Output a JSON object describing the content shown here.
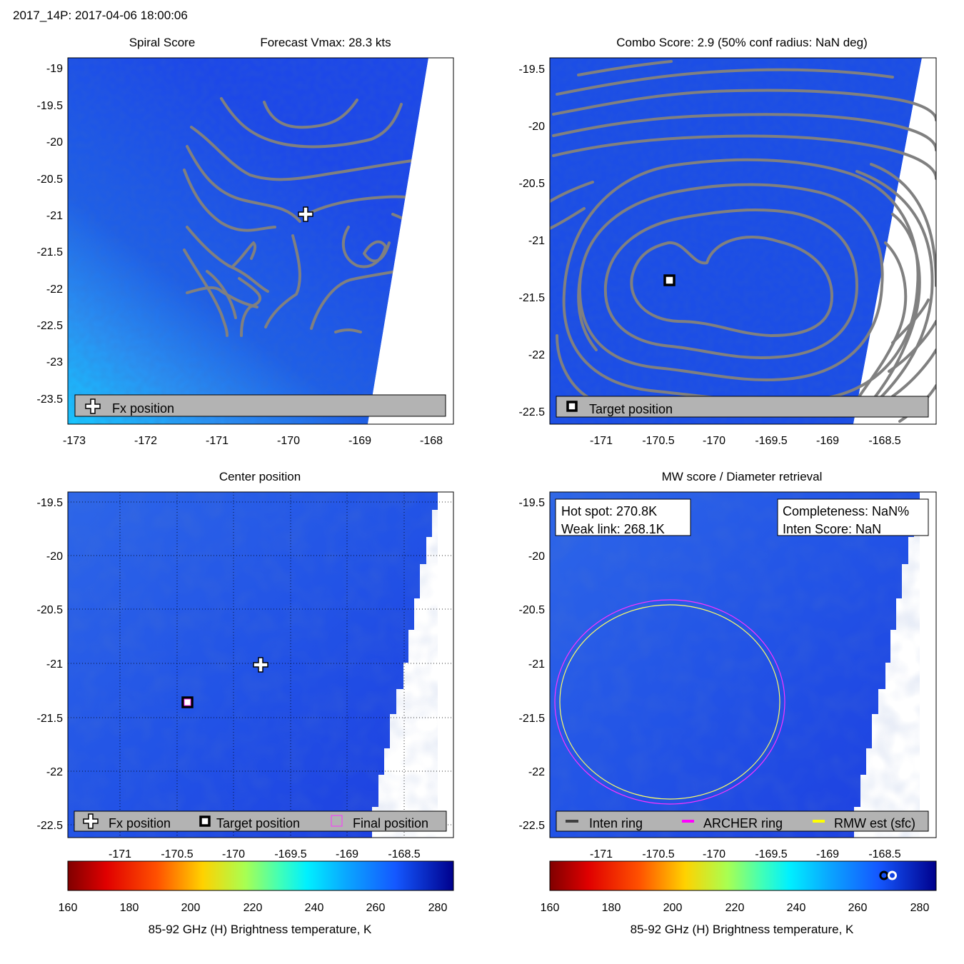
{
  "figure_title": "2017_14P: 2017-04-06 18:00:06",
  "colors": {
    "contour": "#808080",
    "field_blue": "#1c4ee6",
    "legend_bg": "#b3b3b3",
    "archer_ring": "#ff00ff",
    "rmw_ring": "#ffff00",
    "inten_ring": "#404040"
  },
  "panels": {
    "spiral": {
      "title_left": "Spiral Score",
      "title_right": "Forecast Vmax: 28.3 kts",
      "legend": {
        "fx_label": "Fx position"
      }
    },
    "combo": {
      "title": "Combo Score: 2.9  (50% conf radius: NaN deg)",
      "legend": {
        "target_label": "Target position"
      }
    },
    "center": {
      "title": "Center position",
      "legend": {
        "fx_label": "Fx position",
        "target_label": "Target position",
        "final_label": "Final position"
      }
    },
    "mw": {
      "title": "MW score / Diameter retrieval",
      "hot_spot": "Hot spot: 270.8K",
      "weak_link": "Weak link: 268.1K",
      "completeness": "Completeness: NaN%",
      "inten_score": "Inten Score: NaN",
      "legend": {
        "inten_label": "Inten ring",
        "archer_label": "ARCHER ring",
        "rmw_label": "RMW est (sfc)"
      }
    }
  },
  "colorbar": {
    "ticks": [
      "160",
      "180",
      "200",
      "220",
      "240",
      "260",
      "280"
    ],
    "range": [
      160,
      285
    ],
    "label": "85-92 GHz (H) Brightness temperature, K",
    "hot_spot_K": 270.8,
    "weak_link_K": 268.1
  },
  "chart_data": [
    {
      "type": "heatmap",
      "id": "spiral",
      "title": "Spiral Score  Forecast Vmax: 28.3 kts",
      "xlim": [
        -173.1,
        -167.7
      ],
      "ylim": [
        -23.85,
        -18.85
      ],
      "xticks": [
        "-173",
        "-172",
        "-171",
        "-170",
        "-169",
        "-168"
      ],
      "yticks": [
        "-19",
        "-19.5",
        "-20",
        "-20.5",
        "-21",
        "-21.5",
        "-22",
        "-22.5",
        "-23",
        "-23.5"
      ],
      "fx_position": {
        "lon": -169.73,
        "lat": -21.0
      },
      "swath_edge": [
        [
          -168.05,
          -18.85
        ],
        [
          -169.08,
          -23.85
        ]
      ],
      "legend": [
        "Fx position"
      ]
    },
    {
      "type": "heatmap",
      "id": "combo",
      "title": "Combo Score: 2.9  (50% conf radius: NaN deg)",
      "xlim": [
        -171.4,
        -168.0
      ],
      "ylim": [
        -22.61,
        -19.43
      ],
      "xticks": [
        "-171",
        "-170.5",
        "-170",
        "-169.5",
        "-169",
        "-168.5"
      ],
      "yticks": [
        "-19.5",
        "-20",
        "-20.5",
        "-21",
        "-21.5",
        "-22",
        "-22.5"
      ],
      "target_position": {
        "lon": -170.38,
        "lat": -21.36
      },
      "swath_edge": [
        [
          -168.1,
          -19.43
        ],
        [
          -168.75,
          -22.61
        ]
      ],
      "legend": [
        "Target position"
      ]
    },
    {
      "type": "heatmap",
      "id": "center",
      "title": "Center position",
      "xlim": [
        -171.4,
        -168.0
      ],
      "ylim": [
        -22.61,
        -19.43
      ],
      "xticks": [
        "-171",
        "-170.5",
        "-170",
        "-169.5",
        "-169",
        "-168.5"
      ],
      "yticks": [
        "-19.5",
        "-20",
        "-20.5",
        "-21",
        "-21.5",
        "-22",
        "-22.5"
      ],
      "grid": true,
      "fx_position": {
        "lon": -169.73,
        "lat": -21.01
      },
      "target_position": {
        "lon": -170.37,
        "lat": -21.36
      },
      "final_position": {
        "lon": -170.37,
        "lat": -21.36
      },
      "legend": [
        "Fx position",
        "Target position",
        "Final position"
      ]
    },
    {
      "type": "heatmap",
      "id": "mw",
      "title": "MW score / Diameter retrieval",
      "xlim": [
        -171.4,
        -168.0
      ],
      "ylim": [
        -22.61,
        -19.43
      ],
      "xticks": [
        "-171",
        "-170.5",
        "-170",
        "-169.5",
        "-169",
        "-168.5"
      ],
      "yticks": [
        "-19.5",
        "-20",
        "-20.5",
        "-21",
        "-21.5",
        "-22",
        "-22.5"
      ],
      "rings": [
        {
          "name": "ARCHER ring",
          "center_lon": -170.38,
          "center_lat": -21.38,
          "radius_deg": 0.94
        },
        {
          "name": "RMW est (sfc)",
          "center_lon": -170.38,
          "center_lat": -21.38,
          "radius_deg": 0.9
        }
      ],
      "legend": [
        "Inten ring",
        "ARCHER ring",
        "RMW est (sfc)"
      ]
    }
  ]
}
